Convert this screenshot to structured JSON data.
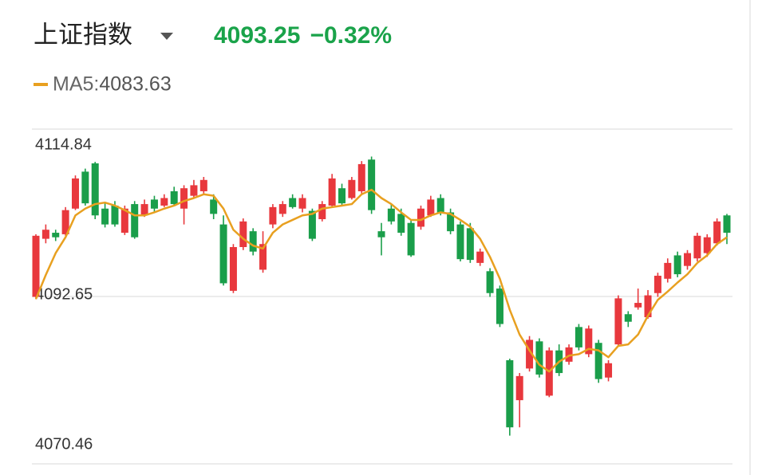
{
  "chart_data": {
    "type": "candlestick",
    "title": "上证指数",
    "last_price": "4093.25",
    "change": "−0.32%",
    "quote_color": "#1aa34a",
    "up_color": "#e8383d",
    "down_color": "#1a9e4a",
    "ylim": [
      4070.46,
      4114.84
    ],
    "yticks": [
      4114.84,
      4092.65,
      4070.46
    ],
    "grid": true,
    "open": [
      4092.6,
      4100.3,
      4101.1,
      4100.9,
      4104.3,
      4109.2,
      4110.3,
      4104.3,
      4104.7,
      4101.1,
      4104.9,
      4103.4,
      4105.5,
      4104.7,
      4106.6,
      4104.3,
      4106.0,
      4106.6,
      4105.5,
      4102.2,
      4093.4,
      4099.2,
      4101.3,
      4096.2,
      4102.2,
      4103.6,
      4105.7,
      4104.3,
      4104.0,
      4102.9,
      4104.7,
      4107.0,
      4105.7,
      4106.6,
      4110.8,
      4101.3,
      4104.3,
      4103.6,
      4102.4,
      4101.9,
      4103.4,
      4105.7,
      4103.8,
      4102.2,
      4101.7,
      4097.1,
      4096.0,
      4093.7,
      4084.2,
      4078.9,
      4083.1,
      4086.7,
      4079.5,
      4085.5,
      4084.0,
      4088.6,
      4085.0,
      4086.5,
      4081.9,
      4086.3,
      4090.3,
      4091.2,
      4089.9,
      4093.1,
      4095.0,
      4098.1,
      4096.7,
      4097.7,
      4098.4,
      4099.7,
      4103.4
    ],
    "high": [
      4100.9,
      4102.2,
      4101.5,
      4104.5,
      4108.7,
      4109.6,
      4110.5,
      4105.0,
      4105.3,
      4104.7,
      4105.3,
      4105.5,
      4106.0,
      4106.2,
      4107.2,
      4107.4,
      4108.1,
      4108.5,
      4106.2,
      4103.4,
      4099.6,
      4103.0,
      4101.7,
      4101.3,
      4104.9,
      4105.3,
      4106.2,
      4106.2,
      4104.3,
      4105.3,
      4108.9,
      4107.6,
      4108.5,
      4110.6,
      4111.2,
      4102.4,
      4104.9,
      4104.3,
      4102.8,
      4104.7,
      4106.0,
      4106.2,
      4104.3,
      4102.6,
      4102.4,
      4099.0,
      4096.4,
      4094.1,
      4084.4,
      4082.5,
      4087.4,
      4087.1,
      4085.9,
      4086.3,
      4086.3,
      4089.0,
      4088.8,
      4086.9,
      4084.2,
      4092.8,
      4090.7,
      4093.7,
      4093.5,
      4095.8,
      4097.7,
      4098.6,
      4098.8,
      4101.1,
      4100.9,
      4103.0,
      4103.6
    ],
    "low": [
      4092.3,
      4099.7,
      4100.0,
      4100.7,
      4104.1,
      4104.7,
      4102.9,
      4101.8,
      4101.9,
      4100.8,
      4100.3,
      4103.2,
      4103.8,
      4104.5,
      4104.7,
      4102.2,
      4105.7,
      4106.2,
      4102.9,
      4094.1,
      4093.1,
      4098.8,
      4098.1,
      4095.8,
      4101.7,
      4103.2,
      4104.3,
      4103.8,
      4100.0,
      4102.6,
      4104.5,
      4104.7,
      4105.5,
      4106.2,
      4103.6,
      4098.1,
      4102.2,
      4100.7,
      4097.9,
      4101.5,
      4103.2,
      4103.4,
      4100.9,
      4097.3,
      4097.1,
      4096.7,
      4092.6,
      4088.6,
      4074.2,
      4075.3,
      4082.7,
      4081.9,
      4079.3,
      4082.1,
      4083.6,
      4085.5,
      4084.6,
      4081.2,
      4081.4,
      4086.1,
      4088.6,
      4090.9,
      4089.7,
      4092.6,
      4094.5,
      4095.2,
      4096.2,
      4097.3,
      4097.9,
      4099.4,
      4099.6
    ],
    "close": [
      4100.7,
      4101.5,
      4100.5,
      4104.1,
      4108.3,
      4105.0,
      4103.4,
      4102.2,
      4102.2,
      4104.3,
      4100.5,
      4104.9,
      4104.3,
      4105.7,
      4104.9,
      4107.0,
      4107.4,
      4108.1,
      4103.6,
      4094.4,
      4099.2,
      4102.6,
      4098.6,
      4099.6,
      4104.5,
      4104.9,
      4104.5,
      4105.7,
      4100.3,
      4104.9,
      4108.3,
      4105.0,
      4108.1,
      4110.2,
      4104.1,
      4100.5,
      4102.6,
      4101.1,
      4098.1,
      4104.3,
      4105.5,
      4103.8,
      4101.3,
      4097.6,
      4097.5,
      4098.6,
      4093.1,
      4089.0,
      4075.3,
      4082.1,
      4086.9,
      4082.3,
      4085.5,
      4082.5,
      4085.9,
      4085.9,
      4088.4,
      4081.7,
      4083.8,
      4092.4,
      4089.3,
      4091.8,
      4092.8,
      4095.4,
      4097.1,
      4095.6,
      4098.4,
      4100.7,
      4100.5,
      4102.6,
      4101.1
    ],
    "ma": {
      "name": "MA5:",
      "color": "#e8a020",
      "current": 4083.63,
      "values": [
        4092.3,
        4095.5,
        4098.4,
        4100.5,
        4103.4,
        4104.3,
        4104.9,
        4105.1,
        4104.7,
        4104.1,
        4103.4,
        4103.4,
        4103.8,
        4104.3,
        4104.7,
        4105.3,
        4105.7,
        4106.2,
        4106.0,
        4104.3,
        4101.5,
        4100.3,
        4099.4,
        4099.0,
        4101.1,
        4102.2,
        4102.8,
        4103.4,
        4103.6,
        4104.3,
        4104.5,
        4104.7,
        4104.9,
        4106.2,
        4106.8,
        4105.7,
        4104.9,
        4103.8,
        4102.8,
        4102.8,
        4103.4,
        4103.8,
        4103.6,
        4102.8,
        4101.9,
        4100.3,
        4097.9,
        4095.0,
        4090.9,
        4087.6,
        4085.5,
        4083.6,
        4082.7,
        4084.0,
        4084.8,
        4085.0,
        4085.7,
        4085.5,
        4084.6,
        4086.1,
        4086.3,
        4087.6,
        4090.1,
        4092.2,
        4093.3,
        4094.5,
        4095.6,
        4097.1,
        4098.1,
        4099.6,
        4100.5
      ]
    }
  }
}
